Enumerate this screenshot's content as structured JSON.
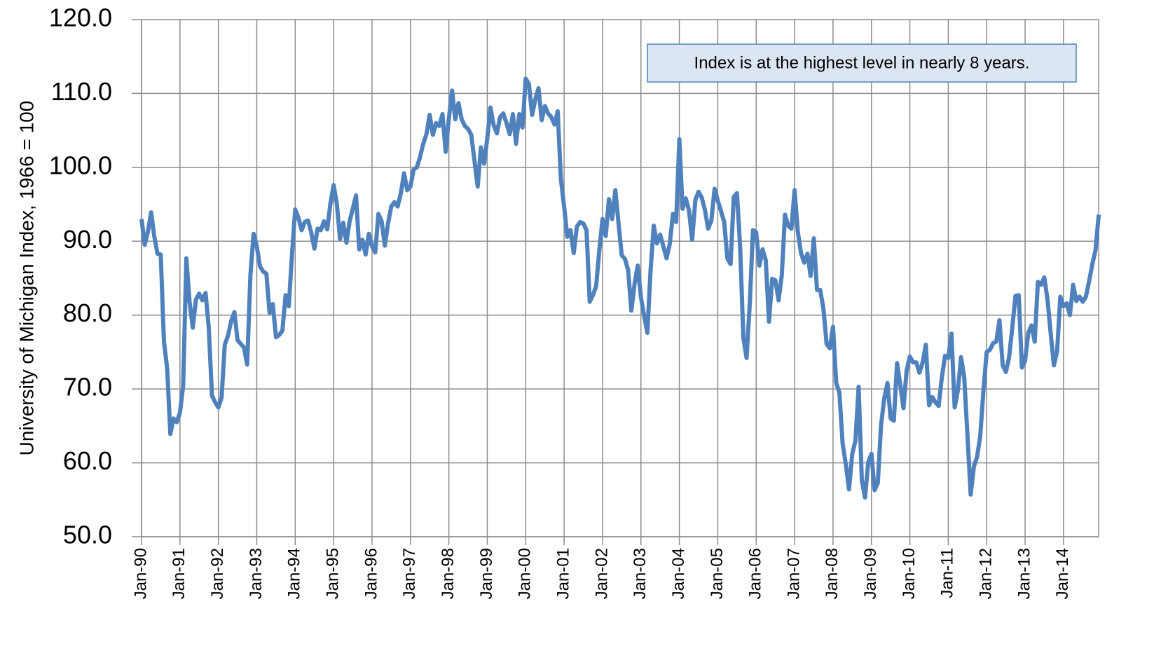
{
  "chart_data": {
    "type": "line",
    "y_axis_label": "University of Michigan Index, 1966 = 100",
    "annotation": "Index is at the highest level in nearly 8 years.",
    "categories": [
      "Jan-90",
      null,
      null,
      null,
      null,
      null,
      null,
      null,
      null,
      null,
      null,
      null,
      "Jan-91",
      null,
      null,
      null,
      null,
      null,
      null,
      null,
      null,
      null,
      null,
      null,
      "Jan-92",
      null,
      null,
      null,
      null,
      null,
      null,
      null,
      null,
      null,
      null,
      null,
      "Jan-93",
      null,
      null,
      null,
      null,
      null,
      null,
      null,
      null,
      null,
      null,
      null,
      "Jan-94",
      null,
      null,
      null,
      null,
      null,
      null,
      null,
      null,
      null,
      null,
      null,
      "Jan-95",
      null,
      null,
      null,
      null,
      null,
      null,
      null,
      null,
      null,
      null,
      null,
      "Jan-96",
      null,
      null,
      null,
      null,
      null,
      null,
      null,
      null,
      null,
      null,
      null,
      "Jan-97",
      null,
      null,
      null,
      null,
      null,
      null,
      null,
      null,
      null,
      null,
      null,
      "Jan-98",
      null,
      null,
      null,
      null,
      null,
      null,
      null,
      null,
      null,
      null,
      null,
      "Jan-99",
      null,
      null,
      null,
      null,
      null,
      null,
      null,
      null,
      null,
      null,
      null,
      "Jan-00",
      null,
      null,
      null,
      null,
      null,
      null,
      null,
      null,
      null,
      null,
      null,
      "Jan-01",
      null,
      null,
      null,
      null,
      null,
      null,
      null,
      null,
      null,
      null,
      null,
      "Jan-02",
      null,
      null,
      null,
      null,
      null,
      null,
      null,
      null,
      null,
      null,
      null,
      "Jan-03",
      null,
      null,
      null,
      null,
      null,
      null,
      null,
      null,
      null,
      null,
      null,
      "Jan-04",
      null,
      null,
      null,
      null,
      null,
      null,
      null,
      null,
      null,
      null,
      null,
      "Jan-05",
      null,
      null,
      null,
      null,
      null,
      null,
      null,
      null,
      null,
      null,
      null,
      "Jan-06",
      null,
      null,
      null,
      null,
      null,
      null,
      null,
      null,
      null,
      null,
      null,
      "Jan-07",
      null,
      null,
      null,
      null,
      null,
      null,
      null,
      null,
      null,
      null,
      null,
      "Jan-08",
      null,
      null,
      null,
      null,
      null,
      null,
      null,
      null,
      null,
      null,
      null,
      "Jan-09",
      null,
      null,
      null,
      null,
      null,
      null,
      null,
      null,
      null,
      null,
      null,
      "Jan-10",
      null,
      null,
      null,
      null,
      null,
      null,
      null,
      null,
      null,
      null,
      null,
      "Jan-11",
      null,
      null,
      null,
      null,
      null,
      null,
      null,
      null,
      null,
      null,
      null,
      "Jan-12",
      null,
      null,
      null,
      null,
      null,
      null,
      null,
      null,
      null,
      null,
      null,
      "Jan-13",
      null,
      null,
      null,
      null,
      null,
      null,
      null,
      null,
      null,
      null,
      null,
      "Jan-14",
      null,
      null,
      null,
      null,
      null,
      null,
      null,
      null,
      null,
      null,
      null
    ],
    "color": "#4f81bd",
    "values": [
      93.0,
      89.5,
      91.3,
      93.9,
      90.6,
      88.3,
      88.2,
      76.4,
      72.8,
      63.9,
      66.0,
      65.5,
      66.8,
      70.4,
      87.7,
      81.8,
      78.3,
      82.1,
      82.9,
      82.0,
      83.0,
      78.3,
      69.1,
      68.2,
      67.5,
      68.8,
      76.0,
      77.2,
      79.2,
      80.4,
      76.6,
      76.1,
      75.6,
      73.3,
      85.3,
      91.0,
      89.3,
      86.6,
      85.9,
      85.6,
      80.3,
      81.5,
      77.0,
      77.3,
      77.9,
      82.7,
      81.2,
      88.2,
      94.3,
      93.2,
      91.5,
      92.6,
      92.8,
      91.2,
      89.0,
      91.7,
      91.5,
      92.7,
      91.6,
      95.1,
      97.6,
      95.1,
      90.3,
      92.5,
      89.8,
      92.7,
      94.4,
      96.2,
      88.9,
      90.2,
      88.2,
      91.0,
      89.3,
      88.5,
      93.7,
      92.7,
      89.4,
      92.4,
      94.7,
      95.3,
      94.7,
      96.5,
      99.2,
      96.9,
      97.4,
      99.7,
      100.0,
      101.4,
      103.2,
      104.5,
      107.1,
      104.4,
      106.0,
      105.6,
      107.2,
      102.1,
      106.6,
      110.4,
      106.5,
      108.7,
      106.5,
      105.6,
      105.2,
      104.4,
      100.9,
      97.4,
      102.7,
      100.5,
      103.9,
      108.1,
      105.7,
      104.6,
      106.8,
      107.3,
      106.0,
      104.5,
      107.2,
      103.2,
      107.2,
      105.4,
      112.0,
      111.3,
      107.1,
      109.2,
      110.7,
      106.4,
      108.3,
      107.3,
      106.8,
      105.8,
      107.6,
      98.4,
      94.7,
      90.6,
      91.5,
      88.4,
      92.0,
      92.6,
      92.4,
      91.5,
      81.8,
      82.7,
      83.9,
      88.8,
      93.0,
      90.7,
      95.7,
      93.0,
      96.9,
      92.4,
      88.1,
      87.6,
      86.1,
      80.6,
      84.2,
      86.7,
      82.4,
      79.9,
      77.6,
      86.0,
      92.1,
      89.7,
      90.9,
      89.3,
      87.7,
      89.6,
      93.7,
      92.6,
      103.8,
      94.4,
      95.8,
      94.2,
      90.2,
      95.6,
      96.7,
      95.9,
      94.2,
      91.7,
      92.8,
      97.1,
      95.5,
      94.1,
      92.6,
      87.7,
      86.9,
      96.0,
      96.5,
      89.1,
      76.9,
      74.2,
      81.6,
      91.5,
      91.2,
      86.7,
      88.9,
      87.4,
      79.1,
      84.9,
      84.7,
      82.0,
      85.4,
      93.6,
      92.1,
      91.7,
      96.9,
      91.3,
      88.4,
      87.1,
      88.3,
      85.3,
      90.4,
      83.4,
      83.4,
      80.9,
      76.1,
      75.5,
      78.4,
      70.8,
      69.5,
      62.6,
      59.8,
      56.4,
      61.2,
      63.0,
      70.3,
      57.6,
      55.3,
      60.1,
      61.2,
      56.3,
      57.3,
      65.1,
      68.7,
      70.8,
      66.0,
      65.7,
      73.5,
      70.6,
      67.4,
      72.5,
      74.4,
      73.6,
      73.6,
      72.2,
      73.6,
      76.0,
      67.8,
      68.9,
      68.2,
      67.7,
      71.6,
      74.5,
      74.2,
      77.5,
      67.5,
      69.8,
      74.3,
      71.5,
      63.7,
      55.7,
      59.5,
      60.8,
      63.7,
      69.9,
      75.0,
      75.3,
      76.2,
      76.4,
      79.3,
      73.2,
      72.3,
      74.3,
      78.3,
      82.6,
      82.7,
      72.9,
      73.8,
      77.6,
      78.6,
      76.4,
      84.5,
      84.1,
      85.1,
      82.1,
      77.5,
      73.2,
      75.1,
      82.5,
      81.2,
      81.6,
      80.0,
      84.1,
      81.9,
      82.5,
      81.8,
      82.5,
      84.6,
      86.9,
      88.8,
      93.6
    ],
    "ylim": [
      50,
      120
    ],
    "yticks": [
      {
        "value": 50,
        "label": "50.0"
      },
      {
        "value": 60,
        "label": "60.0"
      },
      {
        "value": 70,
        "label": "70.0"
      },
      {
        "value": 80,
        "label": "80.0"
      },
      {
        "value": 90,
        "label": "90.0"
      },
      {
        "value": 100,
        "label": "100.0"
      },
      {
        "value": 110,
        "label": "110.0"
      },
      {
        "value": 120,
        "label": "120.0"
      }
    ],
    "grid": true
  }
}
